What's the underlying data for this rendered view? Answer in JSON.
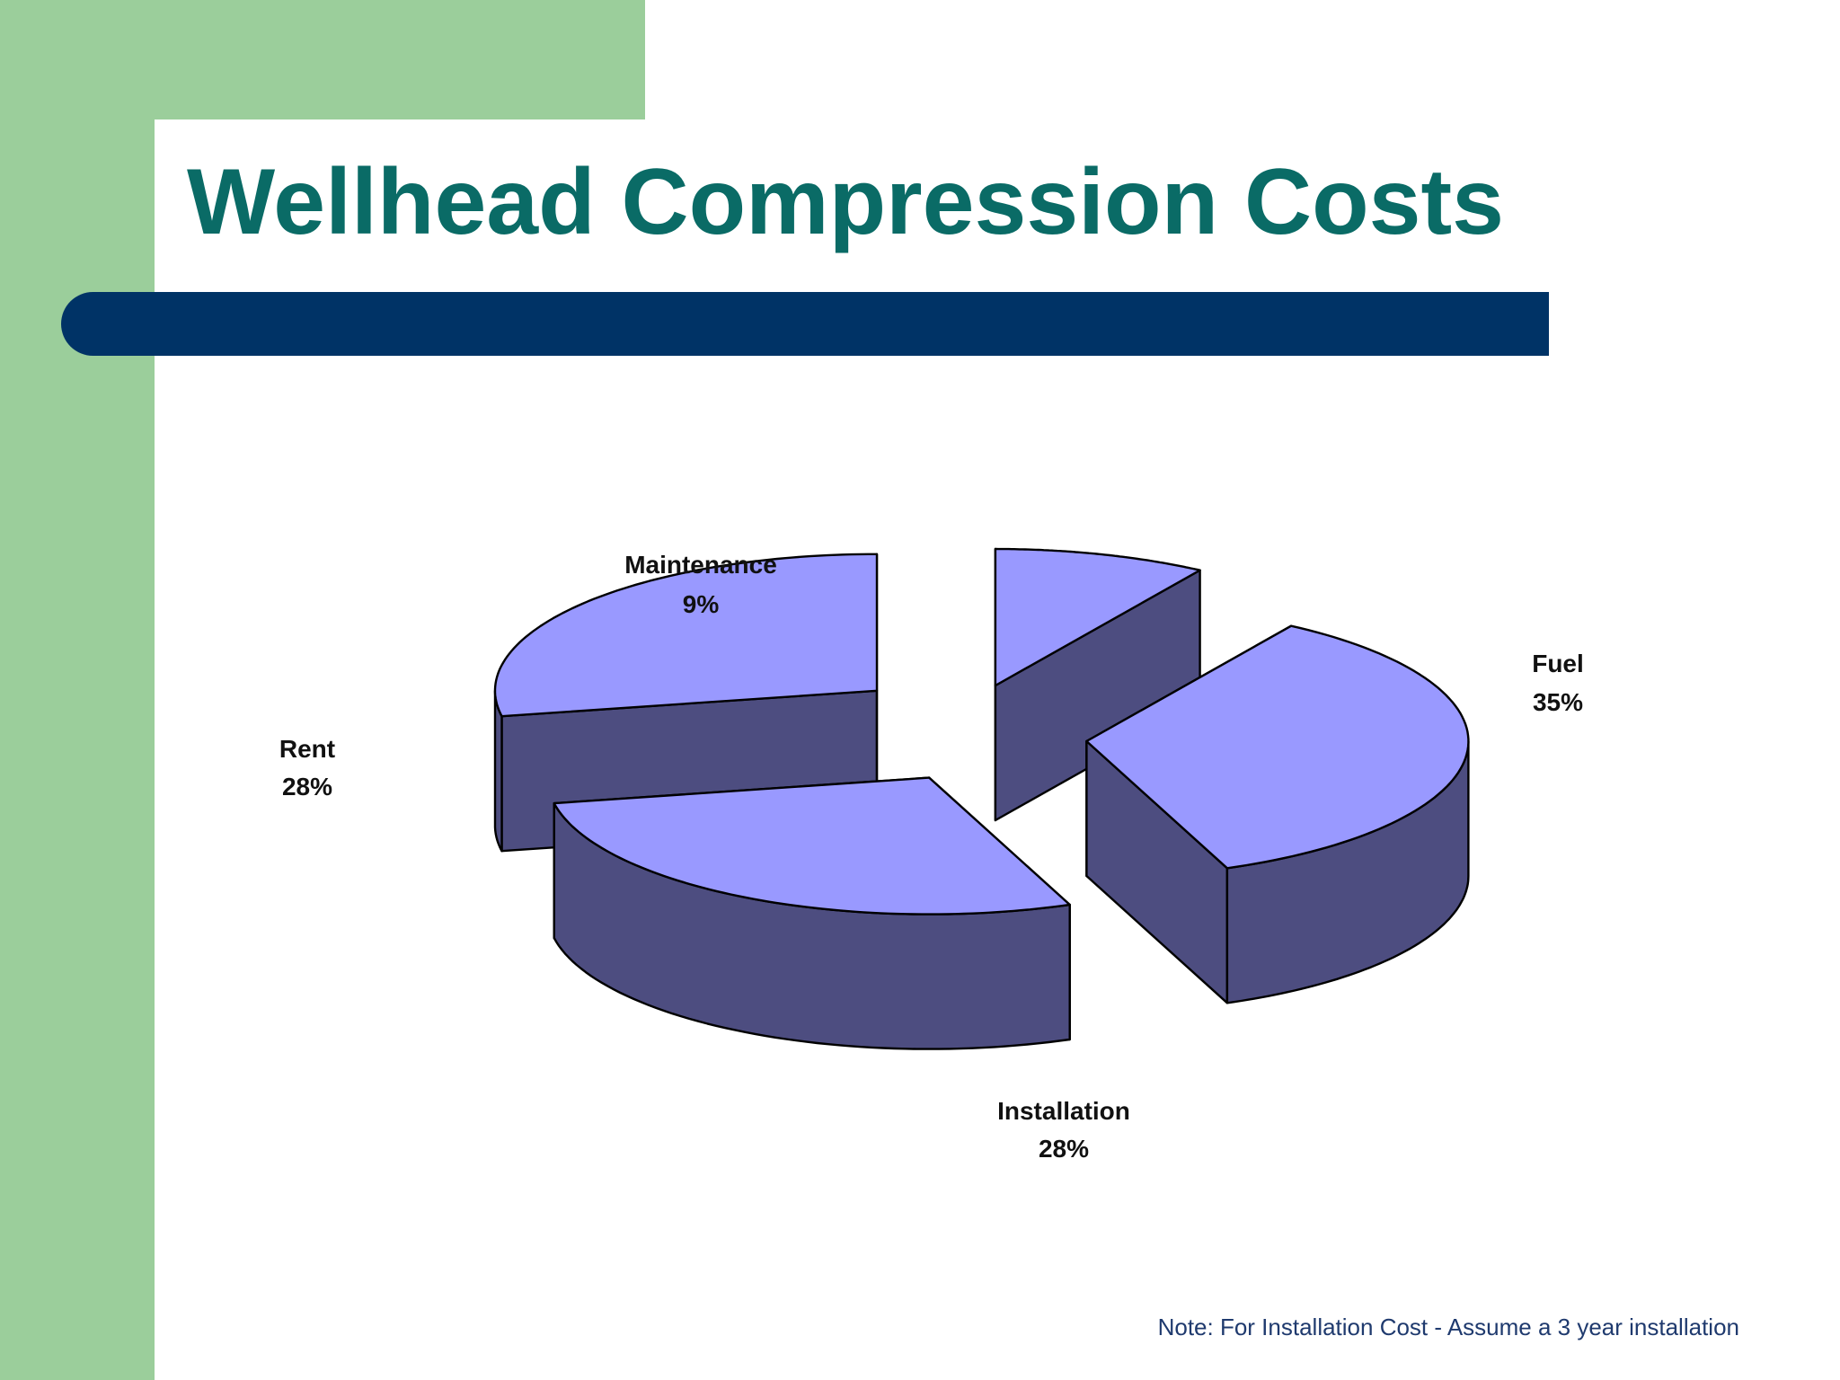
{
  "slide": {
    "title": "Wellhead Compression Costs",
    "note": "Note: For Installation Cost - Assume a 3 year installation"
  },
  "colors": {
    "background": "#ffffff",
    "sidebar_green": "#9bce9b",
    "title_teal": "#0a6b66",
    "rule_navy": "#003366",
    "slice_top": "#9999ff",
    "slice_side": "#4d4d80",
    "note_text": "#1f3a6e"
  },
  "chart_data": {
    "type": "pie",
    "style": "3d-exploded",
    "title": "",
    "slices": [
      {
        "label": "Maintenance",
        "value_label": "9%",
        "value": 9
      },
      {
        "label": "Fuel",
        "value_label": "35%",
        "value": 35
      },
      {
        "label": "Installation",
        "value_label": "28%",
        "value": 28
      },
      {
        "label": "Rent",
        "value_label": "28%",
        "value": 28
      }
    ],
    "legend": "none",
    "data_labels": "outside"
  }
}
